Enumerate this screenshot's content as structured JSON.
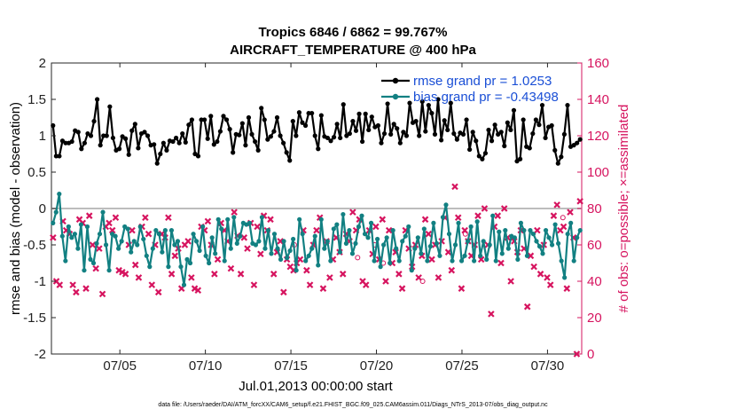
{
  "chart_data": {
    "type": "line",
    "title": "Tropics 6846 / 6862 = 99.767%",
    "subtitle": "AIRCRAFT_TEMPERATURE @ 400 hPa",
    "xlabel": "Jul.01,2013 00:00:00 start",
    "ylabel": "rmse and bias (model - observation)",
    "y2label": "# of obs: o=possible; ×=assimilated",
    "footer": "data file: /Users/raeder/DAI/ATM_forcXX/CAM6_setup/f.e21.FHIST_BGC.f09_025.CAM6assim.011/Diags_NTrS_2013-07/obs_diag_output.nc",
    "xlim": [
      1,
      32
    ],
    "ylim": [
      -2,
      2
    ],
    "y2lim": [
      0,
      160
    ],
    "x_ticks": [
      5,
      10,
      15,
      20,
      25,
      30
    ],
    "x_tick_labels": [
      "07/05",
      "07/10",
      "07/15",
      "07/20",
      "07/25",
      "07/30"
    ],
    "y_ticks": [
      -2,
      -1.5,
      -1,
      -0.5,
      0,
      0.5,
      1,
      1.5,
      2
    ],
    "y_tick_labels": [
      "-2",
      "-1.5",
      "-1",
      "-0.5",
      "0",
      "0.5",
      "1",
      "1.5",
      "2"
    ],
    "y2_ticks": [
      0,
      20,
      40,
      60,
      80,
      100,
      120,
      140,
      160
    ],
    "y2_tick_labels": [
      "0",
      "20",
      "40",
      "60",
      "80",
      "100",
      "120",
      "140",
      "160"
    ],
    "legend_position": "top-right",
    "zero_line": 0,
    "series": [
      {
        "name": "rmse grand pr = 1.0253",
        "color": "#000000",
        "axis": "left",
        "values": [
          1.14,
          0.72,
          0.72,
          0.93,
          0.9,
          0.9,
          0.92,
          1.07,
          1.05,
          0.82,
          0.9,
          1.03,
          1.0,
          1.2,
          1.5,
          0.87,
          1.0,
          1.0,
          1.4,
          0.97,
          0.8,
          0.82,
          0.99,
          0.96,
          0.74,
          1.07,
          1.16,
          0.83,
          1.03,
          1.05,
          1.0,
          0.87,
          0.88,
          0.62,
          0.75,
          0.9,
          0.8,
          0.93,
          0.92,
          0.97,
          0.9,
          1.03,
          0.91,
          1.15,
          1.22,
          0.75,
          0.72,
          1.22,
          1.22,
          0.96,
          1.27,
          0.88,
          0.92,
          1.06,
          1.27,
          1.22,
          1.09,
          0.77,
          1.02,
          1.01,
          1.17,
          0.87,
          1.25,
          1.02,
          0.92,
          0.8,
          1.38,
          1.22,
          0.95,
          0.99,
          1.06,
          1.25,
          1.0,
          0.9,
          0.77,
          0.66,
          1.2,
          1.0,
          1.32,
          1.18,
          1.14,
          1.31,
          1.31,
          1.0,
          0.82,
          1.28,
          0.99,
          0.97,
          0.93,
          0.98,
          1.16,
          0.97,
          1.43,
          1.0,
          1.03,
          1.2,
          1.07,
          1.3,
          0.92,
          1.3,
          1.08,
          1.26,
          1.12,
          1.14,
          0.9,
          1.03,
          1.44,
          1.02,
          1.16,
          1.1,
          0.9,
          1.05,
          1.0,
          1.45,
          1.18,
          1.2,
          1.0,
          1.47,
          1.06,
          1.42,
          1.31,
          1.02,
          1.5,
          0.94,
          1.21,
          1.08,
          1.45,
          1.03,
          0.95,
          1.04,
          1.02,
          1.22,
          0.81,
          1.05,
          0.93,
          0.72,
          0.68,
          0.76,
          1.08,
          0.93,
          1.15,
          1.02,
          1.05,
          0.86,
          1.18,
          1.08,
          1.35,
          0.65,
          0.68,
          1.22,
          0.85,
          0.83,
          1.03,
          1.22,
          1.15,
          1.42,
          0.97,
          1.12,
          1.14,
          0.8,
          0.62,
          0.71,
          1.02,
          1.42,
          0.85,
          0.87,
          0.9,
          0.95
        ]
      },
      {
        "name": "bias grand pr = -0.43498",
        "color": "#128082",
        "axis": "left",
        "values": [
          -0.2,
          -0.05,
          0.2,
          -0.38,
          -0.72,
          -0.25,
          -0.4,
          -0.35,
          -0.55,
          -0.22,
          -0.85,
          -0.25,
          -0.7,
          -0.75,
          -0.48,
          -0.35,
          -0.05,
          -0.5,
          -0.85,
          -0.35,
          -0.38,
          -0.55,
          -0.45,
          -0.25,
          -0.28,
          -0.6,
          -0.45,
          -0.5,
          -0.25,
          -0.42,
          -0.65,
          -0.8,
          -0.55,
          -0.3,
          -0.35,
          -0.6,
          -0.3,
          -0.8,
          -0.3,
          -0.5,
          -0.45,
          -0.8,
          -1.05,
          -0.7,
          -0.75,
          -0.35,
          -0.45,
          -0.58,
          -0.25,
          -0.65,
          -0.75,
          -0.4,
          -0.62,
          -0.15,
          -0.28,
          -0.72,
          -0.15,
          -0.55,
          -0.12,
          -0.48,
          -0.38,
          -0.2,
          -0.22,
          -0.2,
          -0.48,
          -0.5,
          -0.45,
          -0.12,
          -0.55,
          -0.3,
          -0.62,
          -0.35,
          -0.55,
          -0.7,
          -0.45,
          -0.68,
          -0.58,
          -0.42,
          -0.85,
          -0.15,
          -0.35,
          -0.72,
          -0.65,
          -0.55,
          -0.38,
          -0.78,
          -0.15,
          -0.55,
          -0.45,
          -0.72,
          -0.28,
          -0.22,
          -0.6,
          -0.08,
          -0.48,
          -0.3,
          -0.62,
          -0.48,
          -0.25,
          -0.1,
          -0.35,
          -0.4,
          -0.2,
          -0.72,
          -0.42,
          -0.8,
          -0.5,
          -0.4,
          -0.75,
          -0.3,
          -0.55,
          -0.72,
          -0.45,
          -0.38,
          -0.25,
          -0.85,
          -0.55,
          -0.4,
          -0.62,
          -0.28,
          -0.72,
          -0.52,
          -0.2,
          -0.48,
          -0.65,
          -0.12,
          0.05,
          -0.35,
          -0.72,
          -0.5,
          -0.2,
          -0.72,
          -0.65,
          -0.45,
          -0.25,
          -0.72,
          -0.18,
          -0.65,
          -0.45,
          -0.7,
          -0.5,
          -0.1,
          -0.72,
          -0.32,
          -0.62,
          -0.3,
          -0.55,
          -0.38,
          -0.4,
          -0.7,
          -0.2,
          -0.3,
          -0.65,
          -0.3,
          -0.35,
          -0.45,
          -0.52,
          -0.62,
          -0.3,
          -0.4,
          -0.5,
          -0.22,
          -0.48,
          -0.72,
          -0.95,
          -0.35,
          -0.2,
          -0.72,
          -0.4,
          -0.3
        ]
      },
      {
        "name": "observations assimilated",
        "color": "#d6145f",
        "axis": "right",
        "marker": "x",
        "values": [
          64,
          40,
          38,
          73,
          68,
          66,
          38,
          34,
          74,
          72,
          36,
          76,
          60,
          47,
          58,
          33,
          70,
          72,
          68,
          75,
          46,
          45,
          44,
          60,
          68,
          49,
          42,
          70,
          75,
          66,
          38,
          60,
          34,
          66,
          64,
          75,
          44,
          54,
          58,
          36,
          60,
          62,
          42,
          36,
          35,
          70,
          68,
          73,
          60,
          44,
          52,
          72,
          68,
          62,
          47,
          78,
          65,
          44,
          64,
          58,
          72,
          38,
          70,
          55,
          76,
          68,
          74,
          44,
          56,
          62,
          34,
          52,
          48,
          46,
          50,
          52,
          68,
          46,
          38,
          60,
          68,
          75,
          36,
          62,
          42,
          52,
          64,
          56,
          44,
          66,
          62,
          78,
          68,
          74,
          40,
          38,
          68,
          55,
          70,
          52,
          74,
          40,
          68,
          50,
          56,
          44,
          36,
          68,
          58,
          48,
          60,
          42,
          54,
          74,
          66,
          52,
          60,
          42,
          62,
          75,
          56,
          46,
          92,
          75,
          36,
          68,
          62,
          54,
          60,
          76,
          52,
          80,
          60,
          22,
          70,
          76,
          50,
          80,
          64,
          40,
          62,
          56,
          68,
          58,
          26,
          54,
          48,
          68,
          44,
          60,
          42,
          38,
          76,
          82,
          68,
          70,
          36,
          78,
          64,
          0,
          84
        ]
      },
      {
        "name": "observations possible",
        "color": "#d6145f",
        "axis": "right",
        "marker": "o",
        "points": [
          [
            15.2,
            60
          ],
          [
            18.9,
            53
          ],
          [
            19.9,
            60
          ],
          [
            20.4,
            50
          ],
          [
            22.7,
            40
          ],
          [
            25.2,
            66
          ],
          [
            30.9,
            75
          ]
        ]
      }
    ]
  }
}
